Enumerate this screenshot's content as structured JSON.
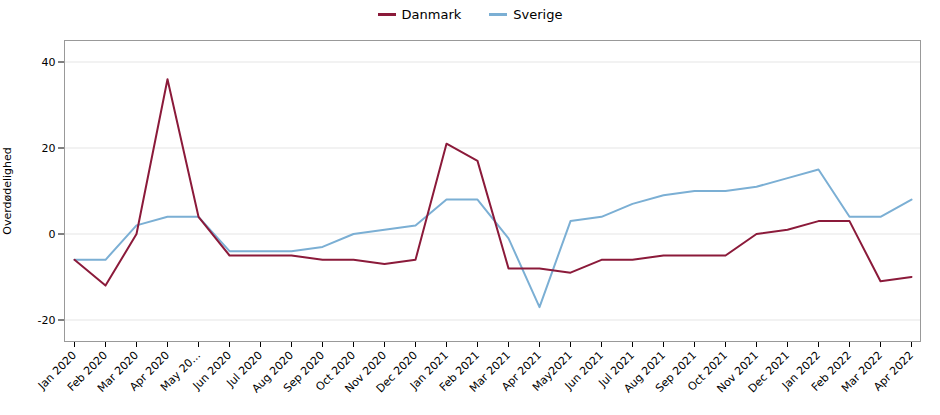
{
  "chart_data": {
    "type": "line",
    "categories": [
      "Jan 2020",
      "Feb 2020",
      "Mar 2020",
      "Apr 2020",
      "May 20...",
      "Jun 2020",
      "Jul 2020",
      "Aug 2020",
      "Sep 2020",
      "Oct 2020",
      "Nov 2020",
      "Dec 2020",
      "Jan 2021",
      "Feb 2021",
      "Mar 2021",
      "Apr 2021",
      "May2021",
      "Jun 2021",
      "Jul 2021",
      "Aug 2021",
      "Sep 2021",
      "Oct 2021",
      "Nov 2021",
      "Dec 2021",
      "Jan 2022",
      "Feb 2022",
      "Mar 2022",
      "Apr 2022"
    ],
    "series": [
      {
        "name": "Danmark",
        "color": "#8B1A3A",
        "values": [
          -6,
          -12,
          0,
          36,
          4,
          -5,
          -5,
          -5,
          -6,
          -6,
          -7,
          -6,
          21,
          17,
          -8,
          -8,
          -9,
          -6,
          -6,
          -5,
          -5,
          -5,
          0,
          1,
          3,
          3,
          -11,
          -10
        ]
      },
      {
        "name": "Sverige",
        "color": "#7BAFD4",
        "values": [
          -6,
          -6,
          2,
          4,
          4,
          -4,
          -4,
          -4,
          -3,
          0,
          1,
          2,
          8,
          8,
          -1,
          -17,
          3,
          4,
          7,
          9,
          10,
          10,
          11,
          13,
          15,
          4,
          4,
          8
        ]
      }
    ],
    "ylabel": "Overdødelighed",
    "ylim": [
      -25,
      45
    ],
    "yticks": [
      -20,
      0,
      20,
      40
    ],
    "grid": true,
    "legend": "top"
  }
}
